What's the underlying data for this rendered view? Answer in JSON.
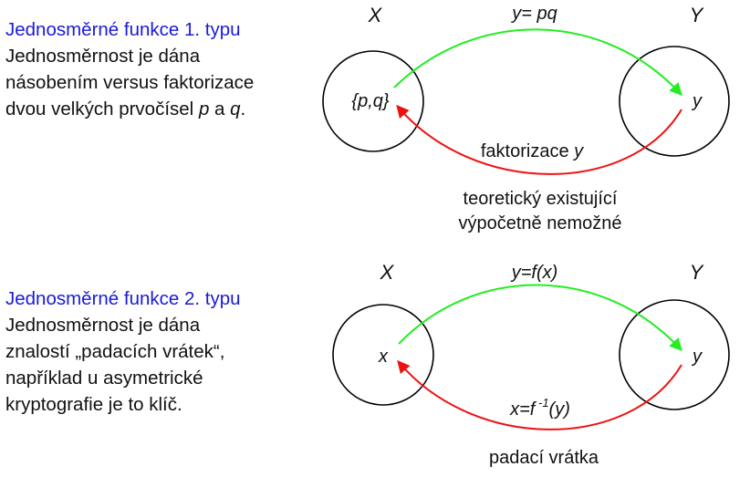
{
  "section1": {
    "title": "Jednosměrné funkce 1. typu",
    "line1": "Jednosměrnost je dána",
    "line2": "násobením versus faktorizace",
    "line3_pre": "dvou velkých prvočísel ",
    "line3_p": "p",
    "line3_mid": " a ",
    "line3_q": "q",
    "line3_end": ".",
    "set_x_label": "X",
    "set_y_label": "Y",
    "element_x": "{p,q}",
    "element_y": "y",
    "forward_label": "y= pq",
    "backward_label_text": "faktorizace ",
    "backward_label_var": "y",
    "note_line1": "teoretický existující",
    "note_line2": "výpočetně nemožné"
  },
  "section2": {
    "title": "Jednosměrné funkce 2. typu",
    "line1": "Jednosměrnost je dána",
    "line2": "znalostí „padacích vrátek“,",
    "line3": "například u asymetrické",
    "line4": "kryptografie je to klíč.",
    "set_x_label": "X",
    "set_y_label": "Y",
    "element_x": "x",
    "element_y": "y",
    "forward_label": "y=f(x)",
    "backward_label_main": "x=f",
    "backward_label_sup": " -1",
    "backward_label_end": "(y)",
    "note_line1": "padací vrátka"
  },
  "colors": {
    "title": "#1a1adc",
    "forward_arrow": "#22ee22",
    "backward_arrow": "#ee1111",
    "circle": "#000000"
  }
}
